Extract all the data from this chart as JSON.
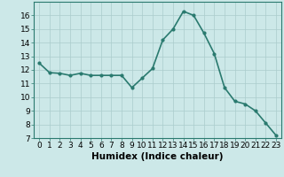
{
  "x": [
    0,
    1,
    2,
    3,
    4,
    5,
    6,
    7,
    8,
    9,
    10,
    11,
    12,
    13,
    14,
    15,
    16,
    17,
    18,
    19,
    20,
    21,
    22,
    23
  ],
  "y": [
    12.5,
    11.8,
    11.75,
    11.6,
    11.75,
    11.6,
    11.6,
    11.6,
    11.6,
    10.7,
    11.4,
    12.1,
    14.2,
    15.0,
    16.3,
    16.0,
    14.7,
    13.2,
    10.7,
    9.7,
    9.5,
    9.0,
    8.1,
    7.2
  ],
  "line_color": "#2a7a6f",
  "marker": "o",
  "marker_size": 2,
  "bg_color": "#cce8e8",
  "grid_color": "#aacccc",
  "xlabel": "Humidex (Indice chaleur)",
  "xlim": [
    -0.5,
    23.5
  ],
  "ylim": [
    7,
    17
  ],
  "yticks": [
    7,
    8,
    9,
    10,
    11,
    12,
    13,
    14,
    15,
    16
  ],
  "xticks": [
    0,
    1,
    2,
    3,
    4,
    5,
    6,
    7,
    8,
    9,
    10,
    11,
    12,
    13,
    14,
    15,
    16,
    17,
    18,
    19,
    20,
    21,
    22,
    23
  ],
  "tick_label_fontsize": 6.5,
  "xlabel_fontsize": 7.5,
  "linewidth": 1.2
}
